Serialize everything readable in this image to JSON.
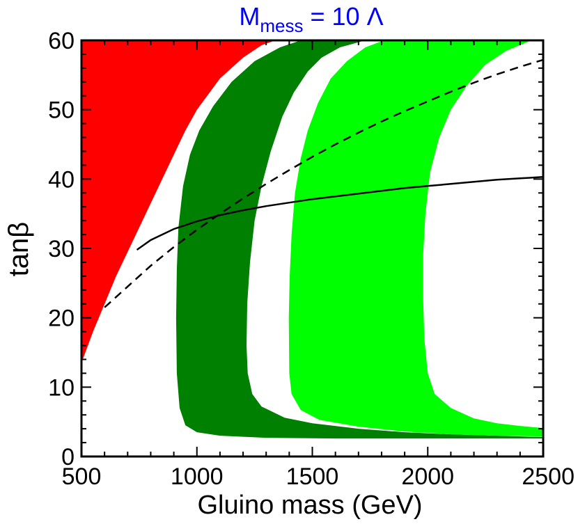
{
  "chart_data": {
    "type": "area",
    "title": {
      "text": "M",
      "subscript": "mess",
      "suffix": " = 10 Λ",
      "color": "#0000ff"
    },
    "xlabel": "Gluino mass  (GeV)",
    "ylabel": "tanβ",
    "xlim": [
      500,
      2500
    ],
    "ylim": [
      0,
      60
    ],
    "x_ticks": [
      500,
      1000,
      1500,
      2000,
      2500
    ],
    "y_ticks": [
      0,
      10,
      20,
      30,
      40,
      50,
      60
    ],
    "grid": false,
    "regions": [
      {
        "name": "excluded-region",
        "color": "#ff0000",
        "points": [
          [
            500,
            13.5
          ],
          [
            550,
            18
          ],
          [
            600,
            22
          ],
          [
            650,
            26
          ],
          [
            700,
            29.5
          ],
          [
            750,
            33
          ],
          [
            800,
            36.5
          ],
          [
            850,
            40
          ],
          [
            900,
            43.5
          ],
          [
            950,
            47
          ],
          [
            1000,
            50
          ],
          [
            1100,
            54.5
          ],
          [
            1200,
            57.5
          ],
          [
            1280,
            59.3
          ],
          [
            1340,
            60
          ],
          [
            500,
            60
          ]
        ]
      },
      {
        "name": "dark-green-band",
        "color": "#008000",
        "points": [
          [
            1730,
            60
          ],
          [
            1620,
            59
          ],
          [
            1540,
            57.5
          ],
          [
            1480,
            55.5
          ],
          [
            1420,
            52.5
          ],
          [
            1370,
            49
          ],
          [
            1320,
            44
          ],
          [
            1280,
            39
          ],
          [
            1250,
            34
          ],
          [
            1230,
            28
          ],
          [
            1218,
            22
          ],
          [
            1215,
            16
          ],
          [
            1220,
            12
          ],
          [
            1240,
            9
          ],
          [
            1280,
            7.2
          ],
          [
            1380,
            5.6
          ],
          [
            1500,
            4.8
          ],
          [
            1700,
            4.0
          ],
          [
            1900,
            3.5
          ],
          [
            2100,
            3.2
          ],
          [
            2300,
            3.0
          ],
          [
            2500,
            2.8
          ],
          [
            2500,
            2.6
          ],
          [
            2200,
            2.6
          ],
          [
            1900,
            2.6
          ],
          [
            1600,
            2.6
          ],
          [
            1300,
            2.7
          ],
          [
            1100,
            3.0
          ],
          [
            1000,
            3.5
          ],
          [
            950,
            4.5
          ],
          [
            925,
            7
          ],
          [
            913,
            12
          ],
          [
            910,
            20
          ],
          [
            913,
            27
          ],
          [
            920,
            33
          ],
          [
            940,
            39
          ],
          [
            970,
            43.5
          ],
          [
            1010,
            47
          ],
          [
            1070,
            50.5
          ],
          [
            1150,
            54
          ],
          [
            1250,
            57
          ],
          [
            1360,
            59
          ],
          [
            1450,
            60
          ]
        ]
      },
      {
        "name": "light-green-band",
        "color": "#00ff00",
        "points": [
          [
            2450,
            60
          ],
          [
            2340,
            58.5
          ],
          [
            2250,
            56.5
          ],
          [
            2170,
            53.5
          ],
          [
            2100,
            50
          ],
          [
            2050,
            46
          ],
          [
            2010,
            41
          ],
          [
            1990,
            35
          ],
          [
            1980,
            29
          ],
          [
            1980,
            23
          ],
          [
            1985,
            17
          ],
          [
            2000,
            12
          ],
          [
            2030,
            9
          ],
          [
            2100,
            7
          ],
          [
            2200,
            5.5
          ],
          [
            2300,
            4.8
          ],
          [
            2400,
            4.4
          ],
          [
            2500,
            4.1
          ],
          [
            2500,
            2.9
          ],
          [
            2300,
            3.0
          ],
          [
            2100,
            3.2
          ],
          [
            1900,
            3.6
          ],
          [
            1700,
            4.3
          ],
          [
            1530,
            5.3
          ],
          [
            1450,
            6.7
          ],
          [
            1410,
            9
          ],
          [
            1400,
            12
          ],
          [
            1398,
            20
          ],
          [
            1402,
            26
          ],
          [
            1410,
            32
          ],
          [
            1425,
            38
          ],
          [
            1450,
            43
          ],
          [
            1480,
            47
          ],
          [
            1525,
            51
          ],
          [
            1580,
            54.5
          ],
          [
            1650,
            57
          ],
          [
            1730,
            59
          ],
          [
            1810,
            60
          ]
        ]
      }
    ],
    "series": [
      {
        "name": "solid-curve",
        "style": "solid",
        "color": "#000000",
        "points": [
          [
            740,
            29.8
          ],
          [
            800,
            31.2
          ],
          [
            900,
            32.8
          ],
          [
            1000,
            33.9
          ],
          [
            1100,
            34.8
          ],
          [
            1200,
            35.5
          ],
          [
            1300,
            36.1
          ],
          [
            1400,
            36.6
          ],
          [
            1500,
            37.1
          ],
          [
            1600,
            37.5
          ],
          [
            1700,
            37.9
          ],
          [
            1800,
            38.3
          ],
          [
            1900,
            38.7
          ],
          [
            2000,
            39.0
          ],
          [
            2100,
            39.3
          ],
          [
            2200,
            39.6
          ],
          [
            2300,
            39.9
          ],
          [
            2400,
            40.1
          ],
          [
            2500,
            40.3
          ]
        ]
      },
      {
        "name": "dashed-curve",
        "style": "dashed",
        "color": "#000000",
        "points": [
          [
            600,
            21.5
          ],
          [
            700,
            24.5
          ],
          [
            800,
            27.5
          ],
          [
            900,
            30.2
          ],
          [
            1000,
            32.7
          ],
          [
            1100,
            35.0
          ],
          [
            1200,
            37.2
          ],
          [
            1300,
            39.3
          ],
          [
            1400,
            41.3
          ],
          [
            1500,
            43.2
          ],
          [
            1600,
            45.0
          ],
          [
            1700,
            46.7
          ],
          [
            1800,
            48.3
          ],
          [
            1900,
            49.8
          ],
          [
            2000,
            51.2
          ],
          [
            2100,
            52.6
          ],
          [
            2200,
            53.9
          ],
          [
            2300,
            55.1
          ],
          [
            2400,
            56.2
          ],
          [
            2500,
            57.2
          ]
        ]
      }
    ]
  }
}
